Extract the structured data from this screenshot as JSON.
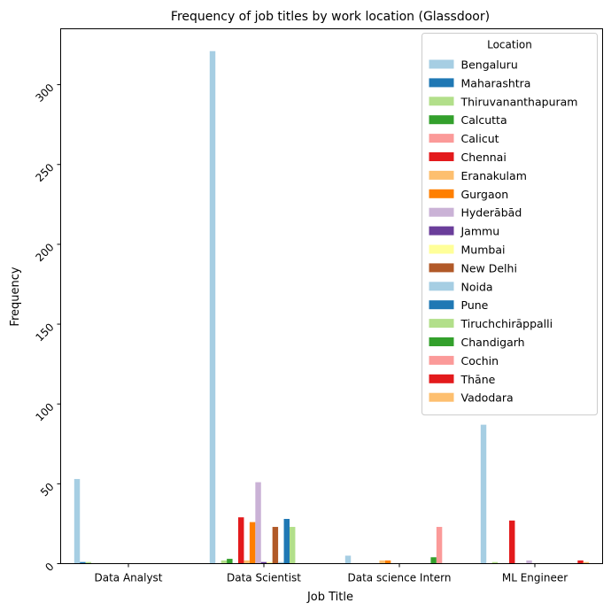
{
  "chart_data": {
    "type": "bar",
    "title": "Frequency of job titles by work location (Glassdoor)",
    "xlabel": "Job Title",
    "ylabel": "Frequency",
    "ylim": [
      0,
      335
    ],
    "yticks": [
      0,
      50,
      100,
      150,
      200,
      250,
      300
    ],
    "grid": false,
    "legend_title": "Location",
    "legend_position": "top-right",
    "categories": [
      "Data Analyst",
      "Data Scientist",
      "Data science Intern",
      "ML Engineer"
    ],
    "series": [
      {
        "name": "Bengaluru",
        "color": "#a6cee3",
        "values": [
          53,
          321,
          5,
          87
        ]
      },
      {
        "name": "Maharashtra",
        "color": "#1f78b4",
        "values": [
          1,
          0,
          0,
          0
        ]
      },
      {
        "name": "Thiruvananthapuram",
        "color": "#b2df8a",
        "values": [
          1,
          2,
          0,
          1
        ]
      },
      {
        "name": "Calcutta",
        "color": "#33a02c",
        "values": [
          0,
          3,
          0,
          0
        ]
      },
      {
        "name": "Calicut",
        "color": "#fb9a99",
        "values": [
          0,
          0,
          0,
          0
        ]
      },
      {
        "name": "Chennai",
        "color": "#e31a1c",
        "values": [
          0,
          29,
          0,
          27
        ]
      },
      {
        "name": "Eranakulam",
        "color": "#fdbf6f",
        "values": [
          0,
          2,
          2,
          0
        ]
      },
      {
        "name": "Gurgaon",
        "color": "#ff7f00",
        "values": [
          0,
          26,
          2,
          0
        ]
      },
      {
        "name": "Hyderābād",
        "color": "#cab2d6",
        "values": [
          0,
          51,
          0,
          2
        ]
      },
      {
        "name": "Jammu",
        "color": "#6a3d9a",
        "values": [
          0,
          1,
          0,
          0
        ]
      },
      {
        "name": "Mumbai",
        "color": "#ffff99",
        "values": [
          0,
          1,
          0,
          0
        ]
      },
      {
        "name": "New Delhi",
        "color": "#b15928",
        "values": [
          0,
          23,
          0,
          0
        ]
      },
      {
        "name": "Noida",
        "color": "#a6cee3",
        "values": [
          0,
          1,
          0,
          0
        ]
      },
      {
        "name": "Pune",
        "color": "#1f78b4",
        "values": [
          0,
          28,
          0,
          0
        ]
      },
      {
        "name": "Tiruchchirāppalli",
        "color": "#b2df8a",
        "values": [
          0,
          23,
          0,
          0
        ]
      },
      {
        "name": "Chandigarh",
        "color": "#33a02c",
        "values": [
          0,
          0,
          4,
          0
        ]
      },
      {
        "name": "Cochin",
        "color": "#fb9a99",
        "values": [
          0,
          0,
          23,
          0
        ]
      },
      {
        "name": "Thāne",
        "color": "#e31a1c",
        "values": [
          0,
          0,
          0,
          2
        ]
      },
      {
        "name": "Vadodara",
        "color": "#fdbf6f",
        "values": [
          0,
          0,
          0,
          1
        ]
      }
    ]
  }
}
